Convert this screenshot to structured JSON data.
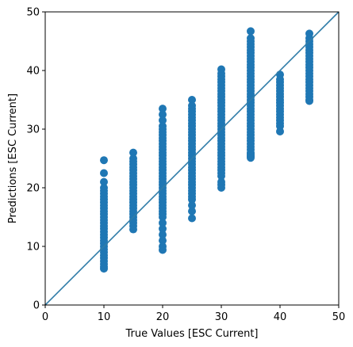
{
  "chart_data": {
    "type": "scatter",
    "title": "",
    "xlabel": "True Values [ESC Current]",
    "ylabel": "Predictions [ESC Current]",
    "xlim": [
      0,
      50
    ],
    "ylim": [
      0,
      50
    ],
    "xticks": [
      "0",
      "10",
      "20",
      "30",
      "40",
      "50"
    ],
    "yticks": [
      "0",
      "10",
      "20",
      "30",
      "40",
      "50"
    ],
    "grid": false,
    "reference_line": {
      "from": [
        0,
        0
      ],
      "to": [
        50,
        50
      ]
    },
    "marker_color": "#1f77b4",
    "line_color": "#2f7ca8",
    "series": [
      {
        "x": [
          10,
          10,
          10,
          10,
          10,
          10,
          10,
          10,
          10,
          10,
          10,
          10,
          10,
          10,
          10,
          10,
          10,
          10,
          10,
          10,
          10,
          10,
          10,
          10,
          10,
          10,
          10,
          10,
          10,
          10,
          10,
          10,
          15,
          15,
          15,
          15,
          15,
          15,
          15,
          15,
          15,
          15,
          15,
          15,
          15,
          15,
          15,
          15,
          15,
          15,
          15,
          15,
          15,
          15,
          15,
          15,
          15,
          15,
          20,
          20,
          20,
          20,
          20,
          20,
          20,
          20,
          20,
          20,
          20,
          20,
          20,
          20,
          20,
          20,
          20,
          20,
          20,
          20,
          20,
          20,
          20,
          20,
          20,
          20,
          20,
          20,
          20,
          20,
          20,
          20,
          20,
          20,
          20,
          20,
          20,
          20,
          20,
          20,
          20,
          25,
          25,
          25,
          25,
          25,
          25,
          25,
          25,
          25,
          25,
          25,
          25,
          25,
          25,
          25,
          25,
          25,
          25,
          25,
          25,
          25,
          25,
          25,
          25,
          25,
          25,
          25,
          25,
          25,
          25,
          25,
          25,
          25,
          25,
          25,
          25,
          25,
          30,
          30,
          30,
          30,
          30,
          30,
          30,
          30,
          30,
          30,
          30,
          30,
          30,
          30,
          30,
          30,
          30,
          30,
          30,
          30,
          30,
          30,
          30,
          30,
          30,
          30,
          30,
          30,
          30,
          30,
          30,
          30,
          30,
          30,
          30,
          30,
          30,
          30,
          30,
          30,
          35,
          35,
          35,
          35,
          35,
          35,
          35,
          35,
          35,
          35,
          35,
          35,
          35,
          35,
          35,
          35,
          35,
          35,
          35,
          35,
          35,
          35,
          35,
          35,
          35,
          35,
          35,
          35,
          35,
          35,
          35,
          35,
          35,
          35,
          35,
          35,
          35,
          35,
          35,
          35,
          35,
          35,
          35,
          35,
          35,
          40,
          40,
          40,
          40,
          40,
          40,
          40,
          40,
          40,
          40,
          40,
          40,
          40,
          40,
          40,
          40,
          40,
          40,
          40,
          45,
          45,
          45,
          45,
          45,
          45,
          45,
          45,
          45,
          45,
          45,
          45,
          45,
          45,
          45,
          45,
          45,
          45,
          45,
          45,
          45,
          45,
          45,
          45
        ],
        "y": [
          24.7,
          22.5,
          21.0,
          20.0,
          19.5,
          19.0,
          18.5,
          18.0,
          17.5,
          17.0,
          16.5,
          16.0,
          15.5,
          15.0,
          14.5,
          14.0,
          13.5,
          13.0,
          12.5,
          12.0,
          11.5,
          11.0,
          10.5,
          10.0,
          9.5,
          9.0,
          8.5,
          8.0,
          7.5,
          7.0,
          6.5,
          6.2,
          26.0,
          25.0,
          24.5,
          24.0,
          23.5,
          23.0,
          22.5,
          22.0,
          21.5,
          21.0,
          20.5,
          20.0,
          19.5,
          19.0,
          18.5,
          18.0,
          17.5,
          17.0,
          16.5,
          16.0,
          15.5,
          15.0,
          14.5,
          14.0,
          13.5,
          12.9,
          33.5,
          32.5,
          31.5,
          30.5,
          30.0,
          29.5,
          29.0,
          28.5,
          28.0,
          27.5,
          27.0,
          26.5,
          26.0,
          25.5,
          25.0,
          24.5,
          24.0,
          23.5,
          23.0,
          22.5,
          22.0,
          21.5,
          21.0,
          20.5,
          20.0,
          19.5,
          19.0,
          18.5,
          18.0,
          17.5,
          17.0,
          16.5,
          16.0,
          15.5,
          15.0,
          14.0,
          13.0,
          12.0,
          11.0,
          10.0,
          9.4,
          35.0,
          34.0,
          33.5,
          33.0,
          32.5,
          32.0,
          31.5,
          31.0,
          30.5,
          30.0,
          29.5,
          29.0,
          28.5,
          28.0,
          27.5,
          27.0,
          26.5,
          26.0,
          25.5,
          25.0,
          24.5,
          24.0,
          23.5,
          23.0,
          22.5,
          22.0,
          21.5,
          21.0,
          20.5,
          20.0,
          19.5,
          19.0,
          18.5,
          18.0,
          17.0,
          16.0,
          14.8,
          40.2,
          39.5,
          39.0,
          38.5,
          38.0,
          37.5,
          37.0,
          36.5,
          36.0,
          35.5,
          35.0,
          34.5,
          34.0,
          33.5,
          33.0,
          32.5,
          32.0,
          31.5,
          31.0,
          30.5,
          30.0,
          29.5,
          29.0,
          28.5,
          28.0,
          27.5,
          27.0,
          26.5,
          26.0,
          25.5,
          25.0,
          24.5,
          24.0,
          23.5,
          23.0,
          22.5,
          22.0,
          21.0,
          20.5,
          20.0,
          46.7,
          45.5,
          45.0,
          44.5,
          44.0,
          43.5,
          43.0,
          42.5,
          42.0,
          41.5,
          41.0,
          40.5,
          40.0,
          39.5,
          39.0,
          38.5,
          38.0,
          37.5,
          37.0,
          36.5,
          36.0,
          35.5,
          35.0,
          34.5,
          34.0,
          33.5,
          33.0,
          32.5,
          32.0,
          31.5,
          31.0,
          30.5,
          30.0,
          29.5,
          29.0,
          28.5,
          28.0,
          27.5,
          27.0,
          26.5,
          26.0,
          25.8,
          25.5,
          25.3,
          25.1,
          39.3,
          38.5,
          38.0,
          37.5,
          37.0,
          36.5,
          36.0,
          35.5,
          35.0,
          34.5,
          34.0,
          33.5,
          33.0,
          32.5,
          32.0,
          31.5,
          31.0,
          30.5,
          29.6,
          46.3,
          45.5,
          45.0,
          44.5,
          44.0,
          43.5,
          43.0,
          42.5,
          42.0,
          41.5,
          41.0,
          40.5,
          40.0,
          39.5,
          39.0,
          38.5,
          38.0,
          37.5,
          37.0,
          36.5,
          36.0,
          35.5,
          35.0,
          34.8
        ]
      }
    ]
  }
}
